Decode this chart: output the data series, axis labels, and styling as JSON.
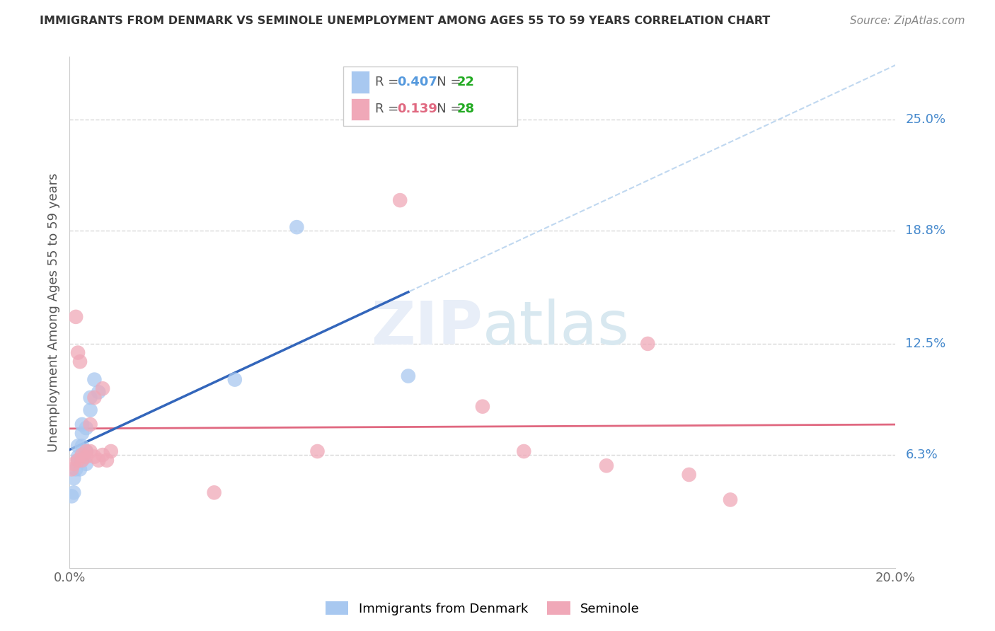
{
  "title": "IMMIGRANTS FROM DENMARK VS SEMINOLE UNEMPLOYMENT AMONG AGES 55 TO 59 YEARS CORRELATION CHART",
  "source": "Source: ZipAtlas.com",
  "ylabel": "Unemployment Among Ages 55 to 59 years",
  "ytick_labels": [
    "25.0%",
    "18.8%",
    "12.5%",
    "6.3%"
  ],
  "ytick_values": [
    0.25,
    0.188,
    0.125,
    0.063
  ],
  "xlim": [
    0.0,
    0.2
  ],
  "ylim": [
    0.0,
    0.285
  ],
  "background_color": "#ffffff",
  "grid_color": "#d8d8d8",
  "blue_label": "Immigrants from Denmark",
  "pink_label": "Seminole",
  "blue_R": "0.407",
  "blue_N": "22",
  "pink_R": "0.139",
  "pink_N": "28",
  "blue_color": "#a8c8f0",
  "pink_color": "#f0a8b8",
  "blue_line_color": "#3366bb",
  "pink_line_color": "#e06880",
  "dash_color": "#c0d8f0",
  "blue_x": [
    0.0005,
    0.001,
    0.001,
    0.0015,
    0.002,
    0.002,
    0.002,
    0.0025,
    0.003,
    0.003,
    0.003,
    0.003,
    0.004,
    0.004,
    0.004,
    0.005,
    0.005,
    0.006,
    0.007,
    0.04,
    0.055,
    0.082
  ],
  "blue_y": [
    0.04,
    0.042,
    0.05,
    0.055,
    0.06,
    0.062,
    0.068,
    0.055,
    0.06,
    0.068,
    0.075,
    0.08,
    0.058,
    0.065,
    0.078,
    0.088,
    0.095,
    0.105,
    0.098,
    0.105,
    0.19,
    0.107
  ],
  "pink_x": [
    0.0005,
    0.001,
    0.0015,
    0.002,
    0.002,
    0.0025,
    0.003,
    0.003,
    0.004,
    0.004,
    0.005,
    0.005,
    0.006,
    0.006,
    0.007,
    0.008,
    0.008,
    0.009,
    0.01,
    0.035,
    0.06,
    0.08,
    0.1,
    0.11,
    0.13,
    0.14,
    0.15,
    0.16
  ],
  "pink_y": [
    0.055,
    0.058,
    0.14,
    0.06,
    0.12,
    0.115,
    0.06,
    0.063,
    0.062,
    0.065,
    0.065,
    0.08,
    0.095,
    0.062,
    0.06,
    0.063,
    0.1,
    0.06,
    0.065,
    0.042,
    0.065,
    0.205,
    0.09,
    0.065,
    0.057,
    0.125,
    0.052,
    0.038
  ],
  "blue_line_xmax": 0.082,
  "pink_line_xmax": 0.2
}
